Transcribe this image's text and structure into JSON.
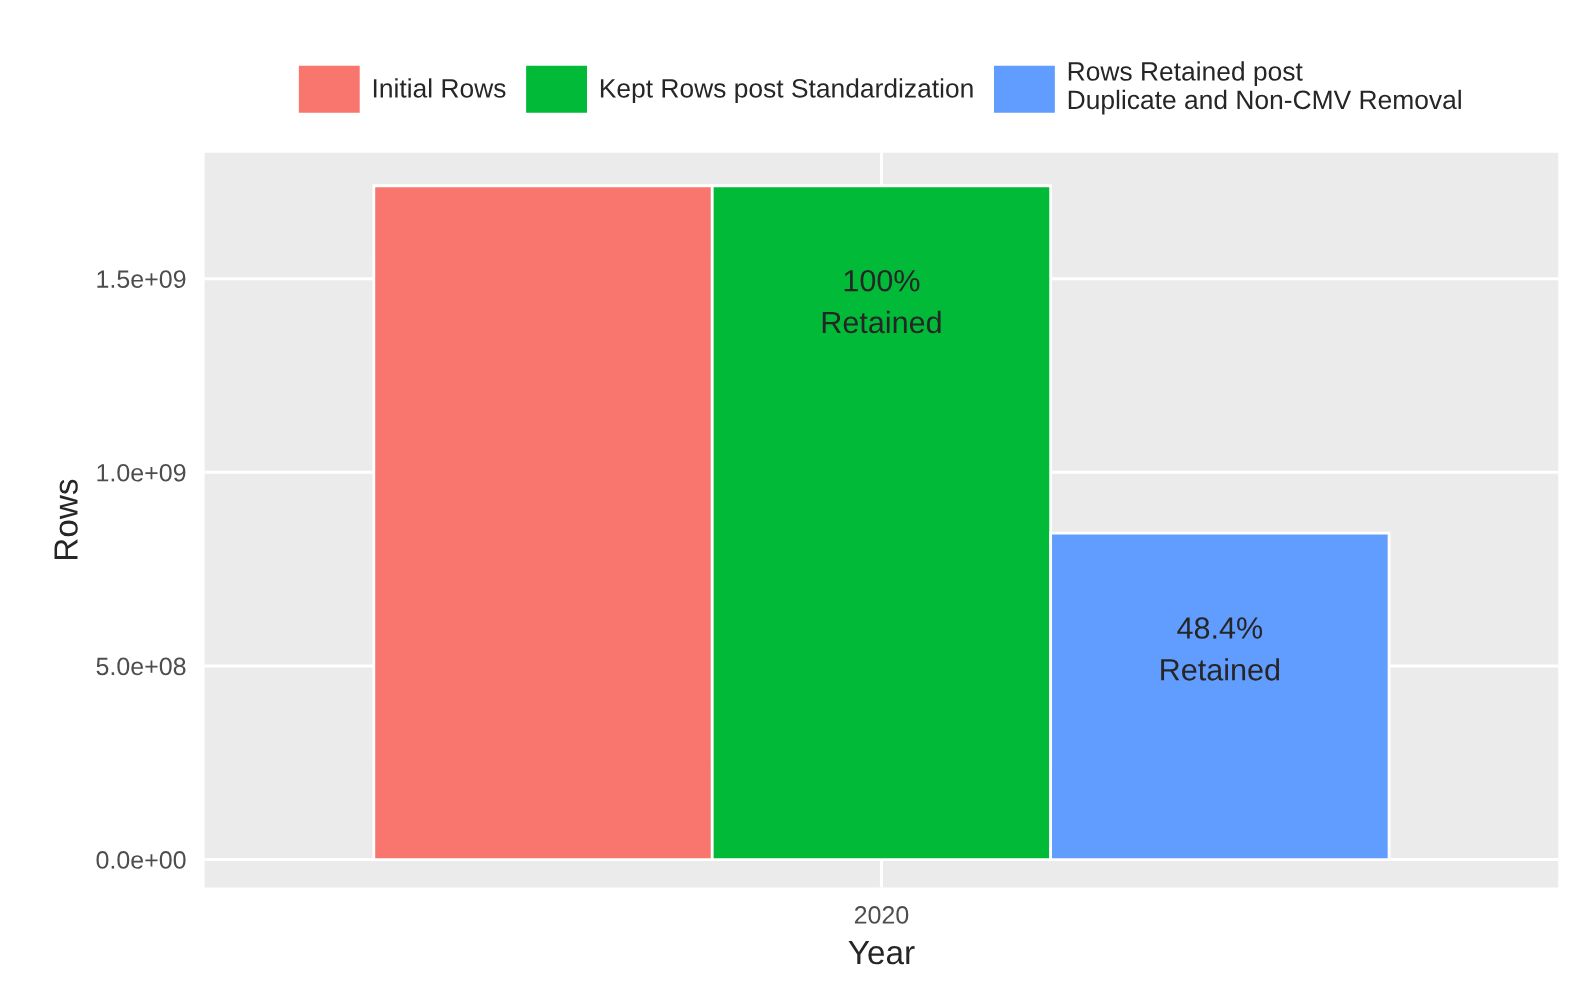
{
  "chart_data": {
    "type": "bar",
    "xlabel": "Year",
    "ylabel": "Rows",
    "categories": [
      "2020"
    ],
    "series": [
      {
        "name": "Initial Rows",
        "color": "#f8766d",
        "values": [
          1740000000
        ]
      },
      {
        "name": "Kept Rows post Standardization",
        "color": "#00ba38",
        "values": [
          1740000000
        ]
      },
      {
        "name": "Rows Retained post\nDuplicate and Non-CMV Removal",
        "color": "#619cff",
        "values": [
          843000000
        ]
      }
    ],
    "annotations": [
      "100%\nRetained",
      "48.4%\nRetained"
    ],
    "ylim": [
      -72000000,
      1825000000
    ],
    "yticks": [
      {
        "value": 0,
        "label": "0.0e+00"
      },
      {
        "value": 500000000,
        "label": "5.0e+08"
      },
      {
        "value": 1000000000,
        "label": "1.0e+09"
      },
      {
        "value": 1500000000,
        "label": "1.5e+09"
      }
    ],
    "grid": true,
    "legend": "top"
  }
}
